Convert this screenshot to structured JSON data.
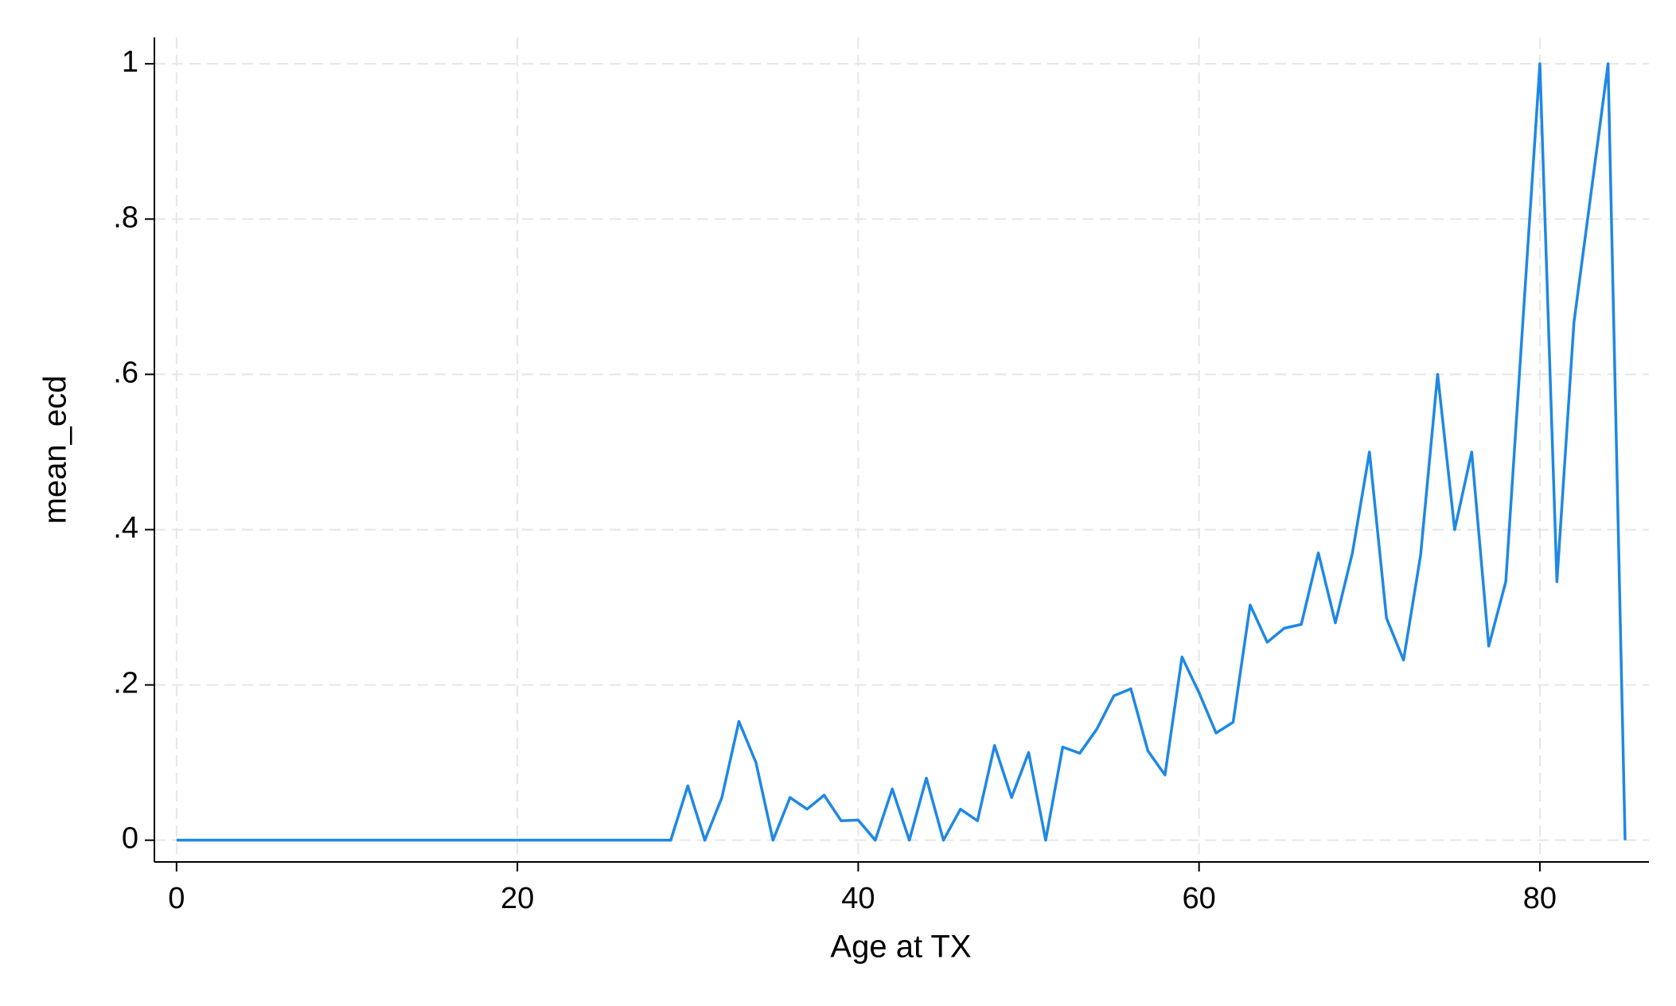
{
  "chart_data": {
    "type": "line",
    "x_label": "Age at TX",
    "y_label": "mean_ecd",
    "x": [
      0,
      1,
      2,
      3,
      4,
      5,
      6,
      7,
      8,
      9,
      10,
      11,
      12,
      13,
      14,
      15,
      16,
      17,
      18,
      19,
      20,
      21,
      22,
      23,
      24,
      25,
      26,
      27,
      28,
      29,
      30,
      31,
      32,
      33,
      34,
      35,
      36,
      37,
      38,
      39,
      40,
      41,
      42,
      43,
      44,
      45,
      46,
      47,
      48,
      49,
      50,
      51,
      52,
      53,
      54,
      55,
      56,
      57,
      58,
      59,
      60,
      61,
      62,
      63,
      64,
      65,
      66,
      67,
      68,
      69,
      70,
      71,
      72,
      73,
      74,
      75,
      76,
      77,
      78,
      79,
      80,
      81,
      82,
      83,
      84,
      85
    ],
    "series": [
      {
        "name": "mean_ecd",
        "color": "#1e88e5",
        "values": [
          0,
          0,
          0,
          0,
          0,
          0,
          0,
          0,
          0,
          0,
          0,
          0,
          0,
          0,
          0,
          0,
          0,
          0,
          0,
          0,
          0,
          0,
          0,
          0,
          0,
          0,
          0,
          0,
          0,
          0,
          0.07,
          0,
          0.055,
          0.153,
          0.1,
          0,
          0.055,
          0.04,
          0.058,
          0.025,
          0.026,
          0,
          0.066,
          0,
          0.08,
          0,
          0.04,
          0.025,
          0.122,
          0.055,
          0.113,
          0,
          0.12,
          0.112,
          0.143,
          0.186,
          0.195,
          0.115,
          0.084,
          0.236,
          0.19,
          0.138,
          0.152,
          0.303,
          0.255,
          0.273,
          0.278,
          0.37,
          0.28,
          0.37,
          0.5,
          0.286,
          0.232,
          0.367,
          0.6,
          0.4,
          0.5,
          0.25,
          0.333,
          0.667,
          1,
          0.333,
          0.667,
          0.833,
          1,
          0
        ]
      }
    ],
    "xlim": [
      -1.3,
      86.4
    ],
    "xticks": [
      0,
      20,
      40,
      60,
      80
    ],
    "ylim": [
      -0.028,
      1.034
    ],
    "yticks": [
      0,
      {
        "value": 0.2,
        "label": ".2"
      },
      {
        "value": 0.4,
        "label": ".4"
      },
      {
        "value": 0.6,
        "label": ".6"
      },
      {
        "value": 0.8,
        "label": ".8"
      },
      1
    ],
    "grid": true
  }
}
